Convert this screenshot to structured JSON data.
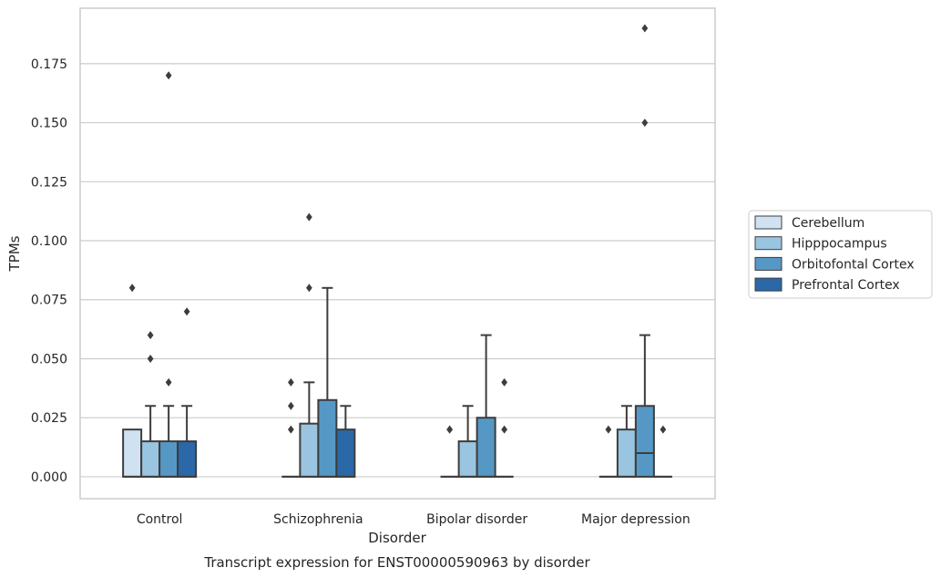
{
  "chart_data": {
    "type": "box",
    "ylabel": "TPMs",
    "xlabel": "Disorder",
    "caption": "Transcript expression for ENST00000590963 by disorder",
    "ylim": [
      -0.0093,
      0.1985
    ],
    "yticks": [
      "0.000",
      "0.025",
      "0.050",
      "0.075",
      "0.100",
      "0.125",
      "0.150",
      "0.175"
    ],
    "grid": "horizontal",
    "legend_position": "right",
    "categories": [
      "Control",
      "Schizophrenia",
      "Bipolar disorder",
      "Major depression"
    ],
    "series": [
      {
        "name": "Cerebellum",
        "color": "#d0e1f2",
        "boxes": [
          {
            "q1": 0,
            "median": 0,
            "q3": 0.02,
            "whisker_low": 0,
            "whisker_high": 0.02,
            "outliers": [
              0.08
            ]
          },
          {
            "q1": 0,
            "median": 0,
            "q3": 0,
            "whisker_low": 0,
            "whisker_high": 0,
            "outliers": [
              0.02,
              0.03,
              0.04
            ]
          },
          {
            "q1": 0,
            "median": 0,
            "q3": 0,
            "whisker_low": 0,
            "whisker_high": 0,
            "outliers": [
              0.02,
              0.02
            ]
          },
          {
            "q1": 0,
            "median": 0,
            "q3": 0,
            "whisker_low": 0,
            "whisker_high": 0,
            "outliers": [
              0.02
            ]
          }
        ]
      },
      {
        "name": "Hipppocampus",
        "color": "#9ac5e0",
        "boxes": [
          {
            "q1": 0,
            "median": 0,
            "q3": 0.015,
            "whisker_low": 0,
            "whisker_high": 0.03,
            "outliers": [
              0.05,
              0.06
            ]
          },
          {
            "q1": 0,
            "median": 0,
            "q3": 0.0225,
            "whisker_low": 0,
            "whisker_high": 0.04,
            "outliers": [
              0.08,
              0.11
            ]
          },
          {
            "q1": 0,
            "median": 0,
            "q3": 0.015,
            "whisker_low": 0,
            "whisker_high": 0.03,
            "outliers": []
          },
          {
            "q1": 0,
            "median": 0,
            "q3": 0.02,
            "whisker_low": 0,
            "whisker_high": 0.03,
            "outliers": []
          }
        ]
      },
      {
        "name": "Orbitofontal Cortex",
        "color": "#5698c5",
        "boxes": [
          {
            "q1": 0,
            "median": 0,
            "q3": 0.015,
            "whisker_low": 0,
            "whisker_high": 0.03,
            "outliers": [
              0.04,
              0.17
            ]
          },
          {
            "q1": 0,
            "median": 0,
            "q3": 0.0325,
            "whisker_low": 0,
            "whisker_high": 0.08,
            "outliers": []
          },
          {
            "q1": 0,
            "median": 0,
            "q3": 0.025,
            "whisker_low": 0,
            "whisker_high": 0.06,
            "outliers": []
          },
          {
            "q1": 0,
            "median": 0.01,
            "q3": 0.03,
            "whisker_low": 0,
            "whisker_high": 0.06,
            "outliers": [
              0.15,
              0.19
            ]
          }
        ]
      },
      {
        "name": "Prefrontal Cortex",
        "color": "#2b68a8",
        "boxes": [
          {
            "q1": 0,
            "median": 0,
            "q3": 0.015,
            "whisker_low": 0,
            "whisker_high": 0.03,
            "outliers": [
              0.07
            ]
          },
          {
            "q1": 0,
            "median": 0,
            "q3": 0.02,
            "whisker_low": 0,
            "whisker_high": 0.03,
            "outliers": []
          },
          {
            "q1": 0,
            "median": 0,
            "q3": 0,
            "whisker_low": 0,
            "whisker_high": 0,
            "outliers": [
              0.02,
              0.04
            ]
          },
          {
            "q1": 0,
            "median": 0,
            "q3": 0,
            "whisker_low": 0,
            "whisker_high": 0,
            "outliers": [
              0.02
            ]
          }
        ]
      }
    ]
  }
}
